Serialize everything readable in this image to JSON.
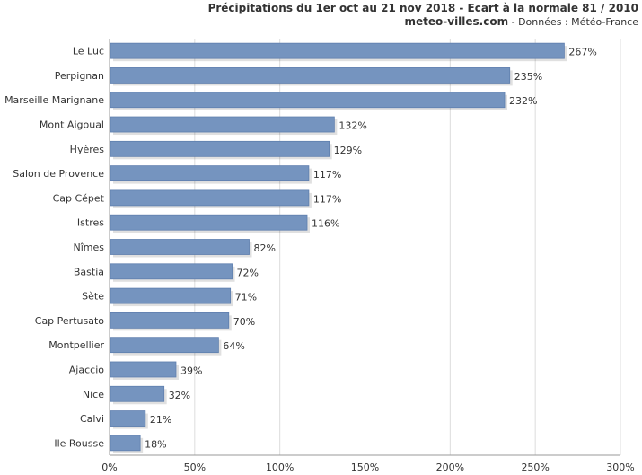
{
  "header": {
    "title": "Précipitations du 1er oct au 21 nov 2018 - Ecart à la normale 81 / 2010",
    "site": "meteo-villes.com",
    "source": " - Données : Météo-France"
  },
  "chart_data": {
    "type": "bar",
    "orientation": "horizontal",
    "title": "Précipitations du 1er oct au 21 nov 2018 - Ecart à la normale 81 / 2010",
    "categories": [
      "Le Luc",
      "Perpignan",
      "Marseille Marignane",
      "Mont Aigoual",
      "Hyères",
      "Salon de Provence",
      "Cap Cépet",
      "Istres",
      "Nîmes",
      "Bastia",
      "Sète",
      "Cap Pertusato",
      "Montpellier",
      "Ajaccio",
      "Nice",
      "Calvi",
      "Ile Rousse"
    ],
    "values": [
      267,
      235,
      232,
      132,
      129,
      117,
      117,
      116,
      82,
      72,
      71,
      70,
      64,
      39,
      32,
      21,
      18
    ],
    "value_suffix": "%",
    "xlim": [
      0,
      300
    ],
    "xticks": [
      0,
      50,
      100,
      150,
      200,
      250,
      300
    ],
    "xtick_labels": [
      "0%",
      "50%",
      "100%",
      "150%",
      "200%",
      "250%",
      "300%"
    ],
    "grid": "vertical",
    "bar_color": "#7594bf",
    "bar_edge_color": "#5f7fae",
    "grid_color": "#dcdcdc",
    "axis_color": "#999999"
  }
}
